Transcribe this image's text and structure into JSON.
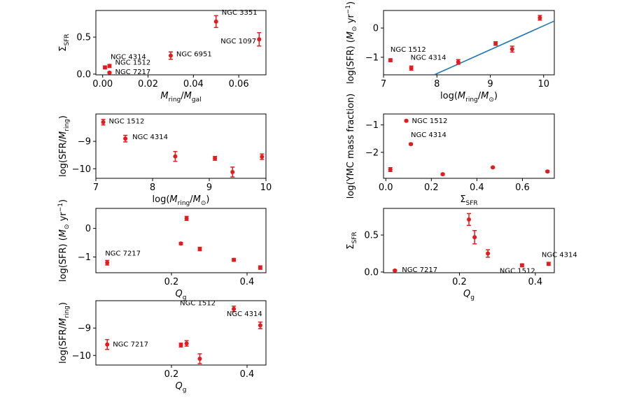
{
  "colors": {
    "marker": "#e41a1c",
    "fitline": "#1f77b4",
    "axis": "#000000"
  },
  "chart_data": [
    {
      "id": "p1",
      "type": "scatter",
      "x": [
        0.001,
        0.003,
        0.003,
        0.03,
        0.05,
        0.069
      ],
      "y": [
        0.09,
        0.11,
        0.02,
        0.25,
        0.71,
        0.47
      ],
      "yerr": [
        0.02,
        0.02,
        0.01,
        0.05,
        0.08,
        0.09
      ],
      "point_labels": [
        "NGC 4314",
        "NGC 1512",
        "NGC 7217",
        "NGC 6951",
        "NGC 3351",
        "NGC 1097"
      ],
      "xlim": [
        -0.003,
        0.072
      ],
      "ylim": [
        -0.01,
        0.86
      ],
      "xticks": [
        0.0,
        0.02,
        0.04,
        0.06
      ],
      "xtick_labels": [
        "0.00",
        "0.02",
        "0.04",
        "0.06"
      ],
      "yticks": [
        0.0,
        0.5
      ],
      "ytick_labels": [
        "0.0",
        "0.5"
      ],
      "xlabel": "M",
      "xlabel_sub": "ring",
      "xlabel_mid": "/M",
      "xlabel_sub2": "gal",
      "ylabel": "Σ",
      "ylabel_sub": "SFR"
    },
    {
      "id": "p2",
      "type": "scatter",
      "x": [
        7.13,
        7.52,
        8.4,
        9.1,
        9.41,
        9.93
      ],
      "y": [
        -1.1,
        -1.37,
        -1.16,
        -0.53,
        -0.72,
        0.35
      ],
      "yerr": [
        0.05,
        0.07,
        0.08,
        0.06,
        0.1,
        0.08
      ],
      "point_labels": [
        "NGC 1512",
        "NGC 4314",
        "",
        "",
        "",
        ""
      ],
      "fit_x": [
        7.95,
        10.2
      ],
      "fit_y": [
        -1.6,
        0.24
      ],
      "xlim": [
        7.0,
        10.2
      ],
      "ylim": [
        -1.6,
        0.6
      ],
      "xticks": [
        7,
        8,
        9,
        10
      ],
      "xtick_labels": [
        "7",
        "8",
        "9",
        "10"
      ],
      "yticks": [
        -1,
        0
      ],
      "ytick_labels": [
        "−1",
        "0"
      ],
      "xlabel": "log(M",
      "xlabel_sub": "ring",
      "xlabel_mid": "/M",
      "xlabel_sub2": "⊙",
      "xlabel_end": ")",
      "ylabel": "log(SFR) (M",
      "ylabel_sub": "⊙",
      "ylabel_mid": " yr",
      "ylabel_sup": "−1",
      "ylabel_end": ")"
    },
    {
      "id": "p3",
      "type": "scatter",
      "x": [
        7.13,
        7.52,
        8.4,
        9.1,
        9.41,
        9.93
      ],
      "y": [
        -8.3,
        -8.9,
        -9.55,
        -9.62,
        -10.12,
        -9.56
      ],
      "yerr": [
        0.1,
        0.12,
        0.18,
        0.07,
        0.18,
        0.1
      ],
      "point_labels": [
        "NGC 1512",
        "NGC 4314",
        "",
        "",
        "",
        ""
      ],
      "xlim": [
        7.0,
        10.0
      ],
      "ylim": [
        -10.35,
        -8.0
      ],
      "xticks": [
        7,
        8,
        9,
        10
      ],
      "xtick_labels": [
        "7",
        "8",
        "9",
        "10"
      ],
      "yticks": [
        -9,
        -10
      ],
      "ytick_labels": [
        "−9",
        "−10"
      ],
      "xlabel": "log(M",
      "xlabel_sub": "ring",
      "xlabel_mid": "/M",
      "xlabel_sub2": "⊙",
      "xlabel_end": ")",
      "ylabel": "log(SFR/M",
      "ylabel_sub": "ring",
      "ylabel_end": ")"
    },
    {
      "id": "p4",
      "type": "scatter",
      "x": [
        0.02,
        0.09,
        0.11,
        0.25,
        0.47,
        0.71
      ],
      "y": [
        -2.63,
        -0.85,
        -1.7,
        -2.8,
        -2.55,
        -2.7
      ],
      "yerr": [
        0.07,
        0.02,
        0.03,
        0.03,
        0.02,
        0.03
      ],
      "point_labels": [
        "",
        "NGC 1512",
        "NGC 4314",
        "",
        "",
        ""
      ],
      "xlim": [
        -0.01,
        0.74
      ],
      "ylim": [
        -2.95,
        -0.6
      ],
      "xticks": [
        0.0,
        0.2,
        0.4,
        0.6
      ],
      "xtick_labels": [
        "0.0",
        "0.2",
        "0.4",
        "0.6"
      ],
      "yticks": [
        -1,
        -2
      ],
      "ytick_labels": [
        "−1",
        "−2"
      ],
      "xlabel": "Σ",
      "xlabel_sub": "SFR",
      "ylabel": "log(YMC mass fraction)"
    },
    {
      "id": "p5",
      "type": "scatter",
      "x": [
        0.03,
        0.225,
        0.24,
        0.275,
        0.365,
        0.435
      ],
      "y": [
        -1.2,
        -0.53,
        0.35,
        -0.72,
        -1.1,
        -1.37
      ],
      "yerr": [
        0.08,
        0.04,
        0.07,
        0.06,
        0.05,
        0.06
      ],
      "point_labels": [
        "NGC 7217",
        "",
        "",
        "",
        "",
        ""
      ],
      "xlim": [
        0.0,
        0.45
      ],
      "ylim": [
        -1.55,
        0.7
      ],
      "xticks": [
        0.2,
        0.4
      ],
      "xtick_labels": [
        "0.2",
        "0.4"
      ],
      "yticks": [
        0,
        -1
      ],
      "ytick_labels": [
        "0",
        "−1"
      ],
      "xlabel": "Q",
      "xlabel_sub": "g",
      "ylabel": "log(SFR) (M",
      "ylabel_sub": "⊙",
      "ylabel_mid": " yr",
      "ylabel_sup": "−1",
      "ylabel_end": ")"
    },
    {
      "id": "p6",
      "type": "scatter",
      "x": [
        0.03,
        0.225,
        0.24,
        0.275,
        0.365,
        0.435
      ],
      "y": [
        0.02,
        0.71,
        0.47,
        0.25,
        0.09,
        0.11
      ],
      "yerr": [
        0.01,
        0.08,
        0.09,
        0.05,
        0.02,
        0.02
      ],
      "point_labels": [
        "NGC 7217",
        "",
        "",
        "",
        "NGC 1512",
        "NGC 4314"
      ],
      "xlim": [
        0.0,
        0.45
      ],
      "ylim": [
        -0.01,
        0.86
      ],
      "xticks": [
        0.2,
        0.4
      ],
      "xtick_labels": [
        "0.2",
        "0.4"
      ],
      "yticks": [
        0.0,
        0.5
      ],
      "ytick_labels": [
        "0.0",
        "0.5"
      ],
      "xlabel": "Q",
      "xlabel_sub": "g",
      "ylabel": "Σ",
      "ylabel_sub": "SFR"
    },
    {
      "id": "p7",
      "type": "scatter",
      "x": [
        0.03,
        0.225,
        0.24,
        0.275,
        0.365,
        0.435
      ],
      "y": [
        -9.6,
        -9.62,
        -9.56,
        -10.12,
        -8.3,
        -8.9
      ],
      "yerr": [
        0.18,
        0.07,
        0.1,
        0.18,
        0.1,
        0.12
      ],
      "point_labels": [
        "NGC 7217",
        "",
        "",
        "",
        "NGC 1512",
        "NGC 4314"
      ],
      "xlim": [
        0.0,
        0.45
      ],
      "ylim": [
        -10.35,
        -8.0
      ],
      "xticks": [
        0.2,
        0.4
      ],
      "xtick_labels": [
        "0.2",
        "0.4"
      ],
      "yticks": [
        -9,
        -10
      ],
      "ytick_labels": [
        "−9",
        "−10"
      ],
      "xlabel": "Q",
      "xlabel_sub": "g",
      "ylabel": "log(SFR/M",
      "ylabel_sub": "ring",
      "ylabel_end": ")"
    }
  ]
}
